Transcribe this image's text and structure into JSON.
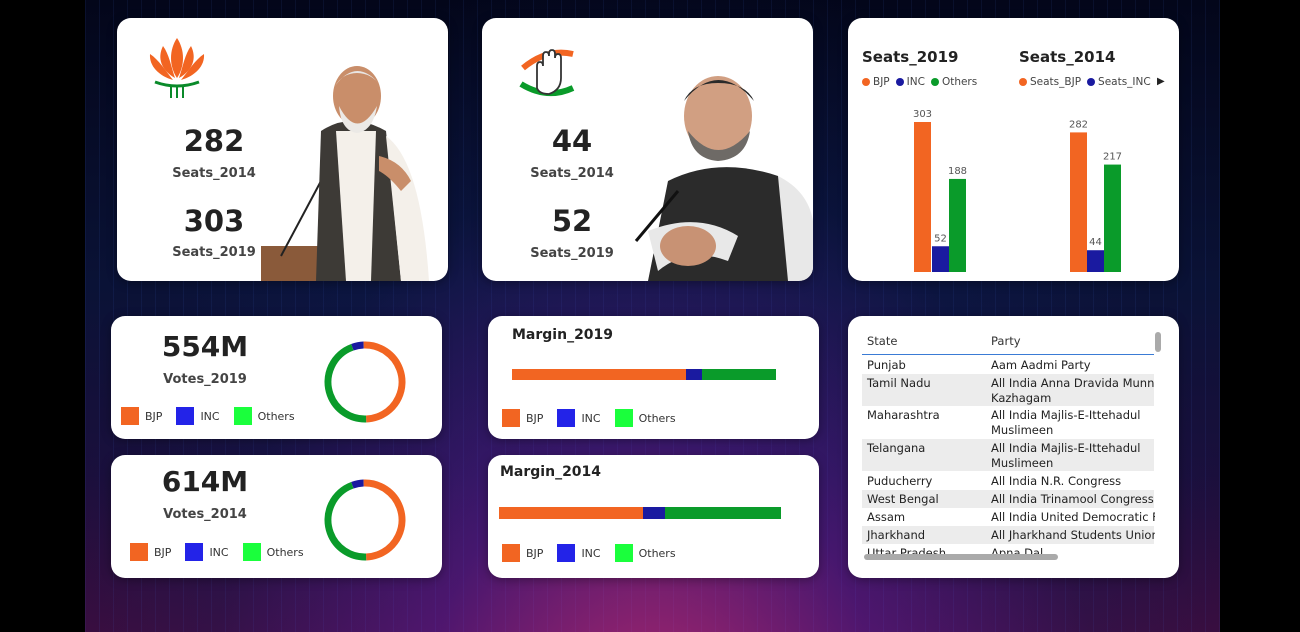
{
  "colors": {
    "bjp": "#f26522",
    "inc": "#1a1aa0",
    "others": "#0a9b2a",
    "legend_inc": "#2323e8",
    "legend_others": "#1aff3c"
  },
  "bjp_card": {
    "logo_icon": "lotus-icon",
    "seats_2014_value": "282",
    "seats_2014_label": "Seats_2014",
    "seats_2019_value": "303",
    "seats_2019_label": "Seats_2019"
  },
  "inc_card": {
    "logo_icon": "hand-icon",
    "seats_2014_value": "44",
    "seats_2014_label": "Seats_2014",
    "seats_2019_value": "52",
    "seats_2019_label": "Seats_2019"
  },
  "seats_chart": {
    "left_title": "Seats_2019",
    "left_legend": [
      "BJP",
      "INC",
      "Others"
    ],
    "right_title": "Seats_2014",
    "right_legend": [
      "Seats_BJP",
      "Seats_INC"
    ],
    "scroll_icon": "caret-right-icon"
  },
  "chart_data": [
    {
      "type": "bar",
      "title": "Seats_2019",
      "categories": [
        "BJP",
        "INC",
        "Others"
      ],
      "values": [
        303,
        52,
        188
      ],
      "ylim": [
        0,
        303
      ]
    },
    {
      "type": "bar",
      "title": "Seats_2014",
      "categories": [
        "Seats_BJP",
        "Seats_INC",
        "Others"
      ],
      "values": [
        282,
        44,
        217
      ],
      "ylim": [
        0,
        303
      ]
    }
  ],
  "votes_2019": {
    "value": "554M",
    "label": "Votes_2019",
    "legend": [
      "BJP",
      "INC",
      "Others"
    ],
    "shares": {
      "bjp": 0.5,
      "inc": 0.05,
      "others": 0.45
    }
  },
  "votes_2014": {
    "value": "614M",
    "label": "Votes_2014",
    "legend": [
      "BJP",
      "INC",
      "Others"
    ],
    "shares": {
      "bjp": 0.5,
      "inc": 0.05,
      "others": 0.45
    }
  },
  "margin_2019": {
    "title": "Margin_2019",
    "legend": [
      "BJP",
      "INC",
      "Others"
    ],
    "shares": {
      "bjp": 0.66,
      "inc": 0.06,
      "others": 0.28
    }
  },
  "margin_2014": {
    "title": "Margin_2014",
    "legend": [
      "BJP",
      "INC",
      "Others"
    ],
    "shares": {
      "bjp": 0.51,
      "inc": 0.08,
      "others": 0.41
    }
  },
  "table": {
    "headers": [
      "State",
      "Party"
    ],
    "rows": [
      {
        "state": "Punjab",
        "party": "Aam Aadmi Party",
        "party2": ""
      },
      {
        "state": "Tamil Nadu",
        "party": "All India Anna Dravida Munnetra",
        "party2": "Kazhagam"
      },
      {
        "state": "Maharashtra",
        "party": "All India Majlis-E-Ittehadul",
        "party2": "Muslimeen"
      },
      {
        "state": "Telangana",
        "party": "All India Majlis-E-Ittehadul",
        "party2": "Muslimeen"
      },
      {
        "state": "Puducherry",
        "party": "All India N.R. Congress",
        "party2": ""
      },
      {
        "state": "West Bengal",
        "party": "All India Trinamool Congress",
        "party2": ""
      },
      {
        "state": "Assam",
        "party": "All India United Democratic Front",
        "party2": ""
      },
      {
        "state": "Jharkhand",
        "party": "All Jharkhand Students Union",
        "party2": ""
      },
      {
        "state": "Uttar Pradesh",
        "party": "Apna Dal",
        "party2": ""
      }
    ]
  }
}
